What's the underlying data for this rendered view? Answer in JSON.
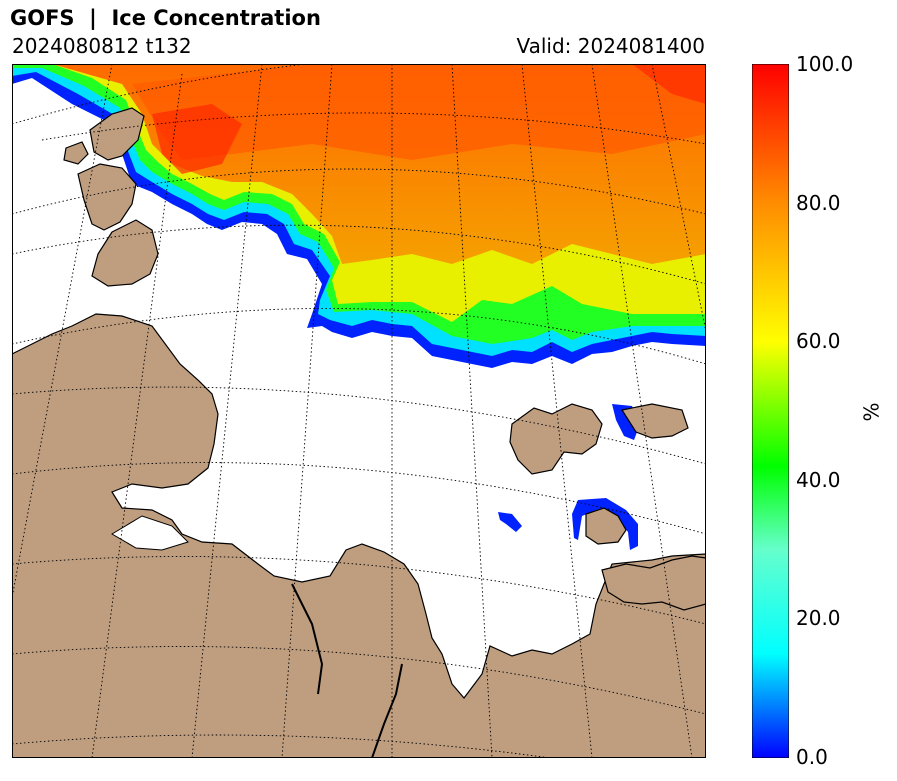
{
  "header": {
    "title": "GOFS  |  Ice Concentration",
    "run": "2024080812 t132",
    "valid": "Valid: 2024081400"
  },
  "colorbar": {
    "unit": "%",
    "ticks": [
      "100.0",
      "80.0",
      "60.0",
      "40.0",
      "20.0",
      "0.0"
    ],
    "range": [
      0,
      100
    ],
    "colors": [
      "#0000ff",
      "#00ffff",
      "#00ff00",
      "#ffff00",
      "#ff8c00",
      "#ff0000"
    ]
  },
  "map": {
    "land_color": "#bf9e80",
    "ocean_color": "#ffffff",
    "coastline_color": "#000000",
    "gridlines": "dotted"
  }
}
